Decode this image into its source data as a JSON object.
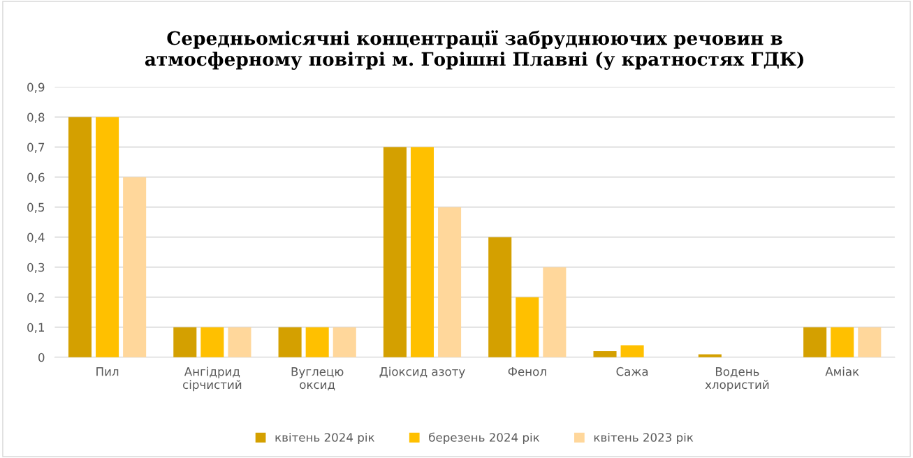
{
  "chart_data": {
    "type": "bar",
    "title": "Середньомісячні концентрації забруднюючих речовин в\nатмосферному повітрі м. Горішні Плавні (у кратностях ГДК)",
    "categories": [
      "Пил",
      "Ангідрид\nсірчистий",
      "Вуглецю\nоксид",
      "Діоксид азоту",
      "Фенол",
      "Сажа",
      "Водень\nхлористий",
      "Аміак"
    ],
    "series": [
      {
        "name": "квітень 2024 рік",
        "color": "#d4a000",
        "values": [
          0.8,
          0.1,
          0.1,
          0.7,
          0.4,
          0.02,
          0.01,
          0.1
        ]
      },
      {
        "name": "березень 2024 рік",
        "color": "#ffc000",
        "values": [
          0.8,
          0.1,
          0.1,
          0.7,
          0.2,
          0.04,
          0,
          0.1
        ]
      },
      {
        "name": "квітень 2023 рік",
        "color": "#ffd79b",
        "values": [
          0.6,
          0.1,
          0.1,
          0.5,
          0.3,
          0,
          0,
          0.1
        ]
      }
    ],
    "ylim": [
      0,
      0.9
    ],
    "yticks": [
      {
        "value": 0,
        "label": "0"
      },
      {
        "value": 0.1,
        "label": "0,1"
      },
      {
        "value": 0.2,
        "label": "0,2"
      },
      {
        "value": 0.3,
        "label": "0,3"
      },
      {
        "value": 0.4,
        "label": "0,4"
      },
      {
        "value": 0.5,
        "label": "0,5"
      },
      {
        "value": 0.6,
        "label": "0,6"
      },
      {
        "value": 0.7,
        "label": "0,7"
      },
      {
        "value": 0.8,
        "label": "0,8"
      },
      {
        "value": 0.9,
        "label": "0,9"
      }
    ],
    "grid": "y",
    "legend": "bottom"
  }
}
